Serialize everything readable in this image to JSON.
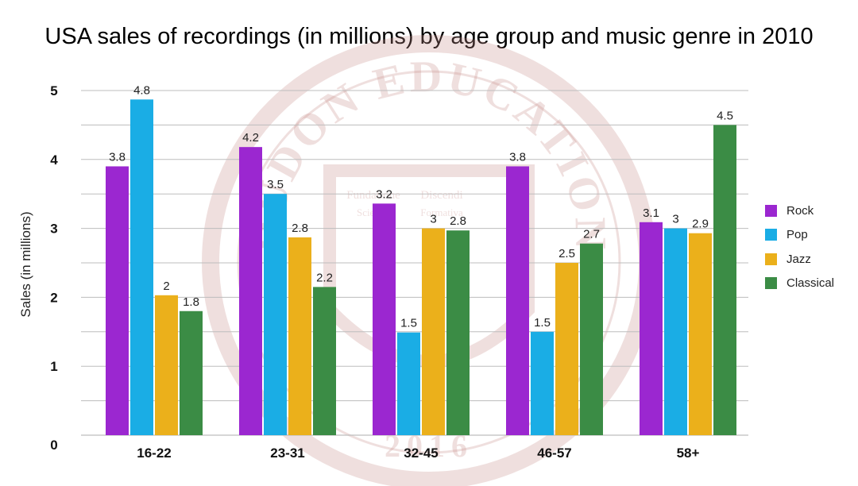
{
  "chart_data": {
    "type": "bar",
    "title": "USA sales of recordings (in millions) by age group and music genre in 2010",
    "xlabel": "",
    "ylabel": "Sales (in millions)",
    "ylim": [
      0,
      5
    ],
    "yticks": [
      0,
      1,
      2,
      3,
      4,
      5
    ],
    "grid": true,
    "legend_position": "right",
    "categories": [
      "16-22",
      "23-31",
      "32-45",
      "46-57",
      "58+"
    ],
    "series": [
      {
        "name": "Rock",
        "color": "#9b27d0",
        "values": [
          3.8,
          4.2,
          3.2,
          3.8,
          3.1
        ],
        "labels": [
          "3.8",
          "4.2",
          "3.2",
          "3.8",
          "3.1"
        ],
        "heights": [
          3.9,
          4.18,
          3.36,
          3.9,
          3.09
        ]
      },
      {
        "name": "Pop",
        "color": "#1aade5",
        "values": [
          4.8,
          3.5,
          1.5,
          1.5,
          3
        ],
        "labels": [
          "4.8",
          "3.5",
          "1.5",
          "1.5",
          "3"
        ],
        "heights": [
          4.87,
          3.5,
          1.49,
          1.5,
          3.0
        ]
      },
      {
        "name": "Jazz",
        "color": "#ebb01b",
        "values": [
          2,
          2.8,
          3,
          2.5,
          2.9
        ],
        "labels": [
          "2",
          "2.8",
          "3",
          "2.5",
          "2.9"
        ],
        "heights": [
          2.03,
          2.87,
          3.0,
          2.5,
          2.93
        ]
      },
      {
        "name": "Classical",
        "color": "#3b8c45",
        "values": [
          1.8,
          2.2,
          2.8,
          2.7,
          4.5
        ],
        "labels": [
          "1.8",
          "2.2",
          "2.8",
          "2.7",
          "4.5"
        ],
        "heights": [
          1.8,
          2.15,
          2.97,
          2.78,
          4.5
        ]
      }
    ]
  },
  "watermark": {
    "text": "DUDON EDUCATION",
    "motto_left": "Fundatione",
    "motto_right": "Discendi",
    "motto_left2": "Scientia",
    "motto_right2": "Formativa",
    "year": "2016",
    "color": "#c9908c"
  }
}
